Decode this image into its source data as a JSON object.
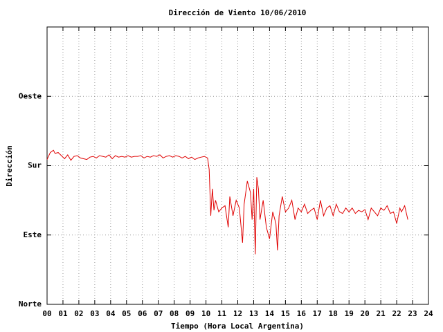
{
  "chart_data": {
    "type": "line",
    "title": "Dirección de Viento 10/06/2010",
    "x_label": "Tiempo (Hora Local Argentina)",
    "y_label": "Dirección",
    "xlim": [
      0,
      24
    ],
    "xticks": [
      {
        "value": 0,
        "label": "00"
      },
      {
        "value": 1,
        "label": "01"
      },
      {
        "value": 2,
        "label": "02"
      },
      {
        "value": 3,
        "label": "03"
      },
      {
        "value": 4,
        "label": "04"
      },
      {
        "value": 5,
        "label": "05"
      },
      {
        "value": 6,
        "label": "06"
      },
      {
        "value": 7,
        "label": "07"
      },
      {
        "value": 8,
        "label": "08"
      },
      {
        "value": 9,
        "label": "09"
      },
      {
        "value": 10,
        "label": "10"
      },
      {
        "value": 11,
        "label": "11"
      },
      {
        "value": 12,
        "label": "12"
      },
      {
        "value": 13,
        "label": "13"
      },
      {
        "value": 14,
        "label": "14"
      },
      {
        "value": 15,
        "label": "15"
      },
      {
        "value": 16,
        "label": "16"
      },
      {
        "value": 17,
        "label": "17"
      },
      {
        "value": 18,
        "label": "18"
      },
      {
        "value": 19,
        "label": "19"
      },
      {
        "value": 20,
        "label": "20"
      },
      {
        "value": 21,
        "label": "21"
      },
      {
        "value": 22,
        "label": "22"
      },
      {
        "value": 23,
        "label": "23"
      },
      {
        "value": 24,
        "label": "24"
      }
    ],
    "ylim": [
      0,
      360
    ],
    "yticks": [
      {
        "value": 0,
        "label": "Norte"
      },
      {
        "value": 90,
        "label": "Este"
      },
      {
        "value": 180,
        "label": "Sur"
      },
      {
        "value": 270,
        "label": "Oeste"
      }
    ],
    "grid": true,
    "series": [
      {
        "color": "#e00000",
        "x": [
          0,
          0.2,
          0.4,
          0.5,
          0.7,
          0.9,
          1.1,
          1.3,
          1.5,
          1.7,
          1.9,
          2.1,
          2.3,
          2.5,
          2.7,
          2.9,
          3.1,
          3.3,
          3.5,
          3.7,
          3.9,
          4.1,
          4.3,
          4.5,
          4.7,
          4.9,
          5.1,
          5.3,
          5.5,
          5.7,
          5.9,
          6.1,
          6.3,
          6.5,
          6.7,
          6.9,
          7.1,
          7.3,
          7.5,
          7.7,
          7.9,
          8.1,
          8.3,
          8.5,
          8.7,
          8.9,
          9.1,
          9.3,
          9.5,
          9.7,
          9.9,
          10.1,
          10.2,
          10.3,
          10.4,
          10.5,
          10.6,
          10.8,
          11.0,
          11.2,
          11.4,
          11.5,
          11.7,
          11.9,
          12.1,
          12.3,
          12.4,
          12.6,
          12.8,
          12.9,
          13.0,
          13.1,
          13.2,
          13.3,
          13.4,
          13.6,
          13.8,
          14.0,
          14.2,
          14.4,
          14.5,
          14.6,
          14.8,
          15.0,
          15.2,
          15.4,
          15.6,
          15.8,
          16.0,
          16.2,
          16.4,
          16.6,
          16.8,
          17.0,
          17.2,
          17.4,
          17.6,
          17.8,
          18.0,
          18.2,
          18.4,
          18.6,
          18.8,
          19.0,
          19.2,
          19.4,
          19.6,
          19.8,
          20.0,
          20.2,
          20.4,
          20.6,
          20.8,
          21.0,
          21.2,
          21.4,
          21.6,
          21.8,
          22.0,
          22.2,
          22.3,
          22.5,
          22.7
        ],
        "values": [
          188,
          197,
          200,
          196,
          197,
          193,
          189,
          194,
          187,
          192,
          193,
          190,
          189,
          188,
          191,
          192,
          190,
          193,
          192,
          191,
          194,
          189,
          193,
          191,
          192,
          191,
          193,
          191,
          192,
          192,
          193,
          190,
          192,
          191,
          193,
          192,
          194,
          190,
          192,
          193,
          191,
          193,
          192,
          190,
          192,
          189,
          191,
          188,
          190,
          191,
          192,
          190,
          175,
          115,
          150,
          122,
          135,
          120,
          125,
          128,
          100,
          140,
          115,
          135,
          125,
          80,
          130,
          160,
          145,
          110,
          150,
          65,
          165,
          150,
          110,
          135,
          100,
          85,
          120,
          105,
          70,
          115,
          140,
          120,
          125,
          135,
          110,
          125,
          120,
          130,
          118,
          122,
          125,
          110,
          135,
          115,
          125,
          128,
          115,
          130,
          120,
          118,
          125,
          120,
          125,
          118,
          122,
          120,
          123,
          110,
          125,
          120,
          115,
          125,
          122,
          128,
          118,
          120,
          105,
          125,
          120,
          128,
          110
        ]
      }
    ]
  }
}
